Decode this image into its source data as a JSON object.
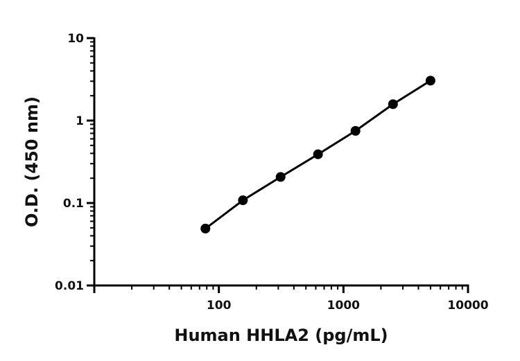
{
  "chart_data": {
    "type": "scatter",
    "x_scale": "log",
    "y_scale": "log",
    "xlabel": "Human HHLA2 (pg/mL)",
    "ylabel": "O.D. (450 nm)",
    "xlim": [
      10,
      10000
    ],
    "ylim": [
      0.01,
      10
    ],
    "x_ticks": [
      {
        "value": 100,
        "label": "100"
      },
      {
        "value": 1000,
        "label": "1000"
      },
      {
        "value": 10000,
        "label": "10000"
      }
    ],
    "y_ticks": [
      {
        "value": 0.01,
        "label": "0.01"
      },
      {
        "value": 0.1,
        "label": "0.1"
      },
      {
        "value": 1,
        "label": "1"
      },
      {
        "value": 10,
        "label": "10"
      }
    ],
    "series": [
      {
        "x": [
          78,
          156,
          313,
          625,
          1250,
          2500,
          5000
        ],
        "y": [
          0.049,
          0.108,
          0.207,
          0.39,
          0.75,
          1.58,
          3.05
        ],
        "fit_line": true
      }
    ],
    "grid": false,
    "legend": "none",
    "colors": {
      "series": "#000000",
      "axis": "#000000"
    }
  }
}
